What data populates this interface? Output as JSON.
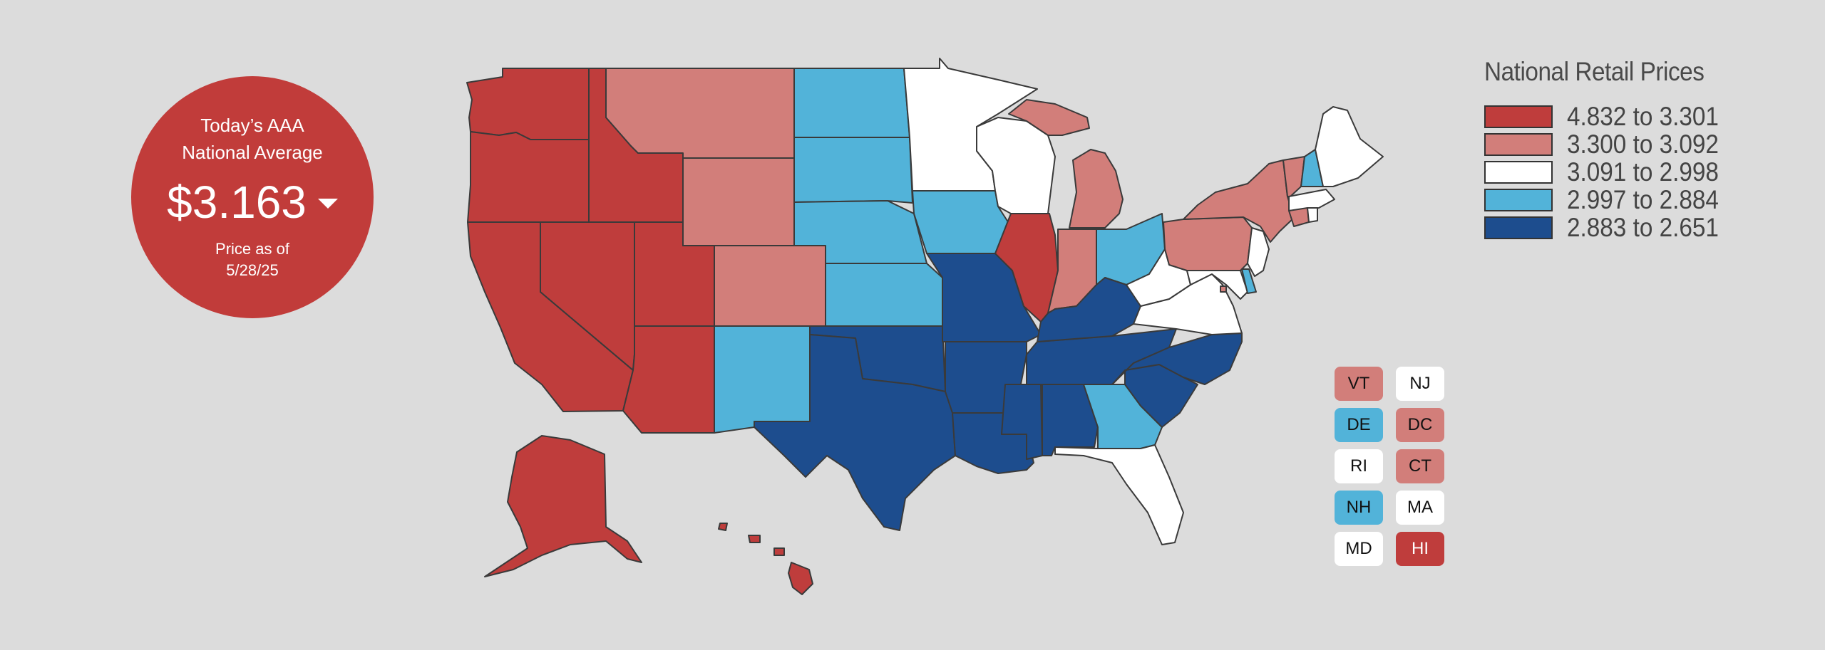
{
  "colors": {
    "background": "#dcdcdc",
    "tier1": "#bf3d3c",
    "tier2": "#d27e7a",
    "tier3": "#ffffff",
    "tier4": "#52b3d9",
    "tier5": "#1d4d8e"
  },
  "average": {
    "title_line1": "Today’s AAA",
    "title_line2": "National Average",
    "price": "$3.163",
    "trend_icon": "caret-down-icon",
    "date_line1": "Price as of",
    "date_line2": "5/28/25"
  },
  "legend": {
    "title": "National Retail Prices",
    "items": [
      {
        "label": "4.832 to 3.301",
        "color": "#bf3d3c"
      },
      {
        "label": "3.300 to 3.092",
        "color": "#d27e7a"
      },
      {
        "label": "3.091 to 2.998",
        "color": "#ffffff"
      },
      {
        "label": "2.997 to 2.884",
        "color": "#52b3d9"
      },
      {
        "label": "2.883 to 2.651",
        "color": "#1d4d8e"
      }
    ]
  },
  "small_states": [
    {
      "abbr": "VT",
      "tier": 2
    },
    {
      "abbr": "NJ",
      "tier": 3
    },
    {
      "abbr": "DE",
      "tier": 4
    },
    {
      "abbr": "DC",
      "tier": 2
    },
    {
      "abbr": "RI",
      "tier": 3
    },
    {
      "abbr": "CT",
      "tier": 2
    },
    {
      "abbr": "NH",
      "tier": 4
    },
    {
      "abbr": "MA",
      "tier": 3
    },
    {
      "abbr": "MD",
      "tier": 3
    },
    {
      "abbr": "HI",
      "tier": 1
    }
  ],
  "state_tiers": {
    "WA": 1,
    "OR": 1,
    "CA": 1,
    "NV": 1,
    "ID": 1,
    "UT": 1,
    "AZ": 1,
    "AK": 1,
    "HI": 1,
    "IL": 1,
    "MT": 2,
    "WY": 2,
    "CO": 2,
    "MI": 2,
    "IN": 2,
    "PA": 2,
    "NY": 2,
    "VT": 2,
    "CT": 2,
    "DC": 2,
    "MN": 3,
    "WI": 3,
    "WV": 3,
    "VA": 3,
    "FL": 3,
    "ME": 3,
    "MA": 3,
    "RI": 3,
    "NJ": 3,
    "MD": 3,
    "ND": 4,
    "SD": 4,
    "NE": 4,
    "KS": 4,
    "IA": 4,
    "NM": 4,
    "OH": 4,
    "GA": 4,
    "NH": 4,
    "DE": 4,
    "MO": 5,
    "OK": 5,
    "TX": 5,
    "AR": 5,
    "LA": 5,
    "MS": 5,
    "AL": 5,
    "TN": 5,
    "KY": 5,
    "NC": 5,
    "SC": 5
  }
}
